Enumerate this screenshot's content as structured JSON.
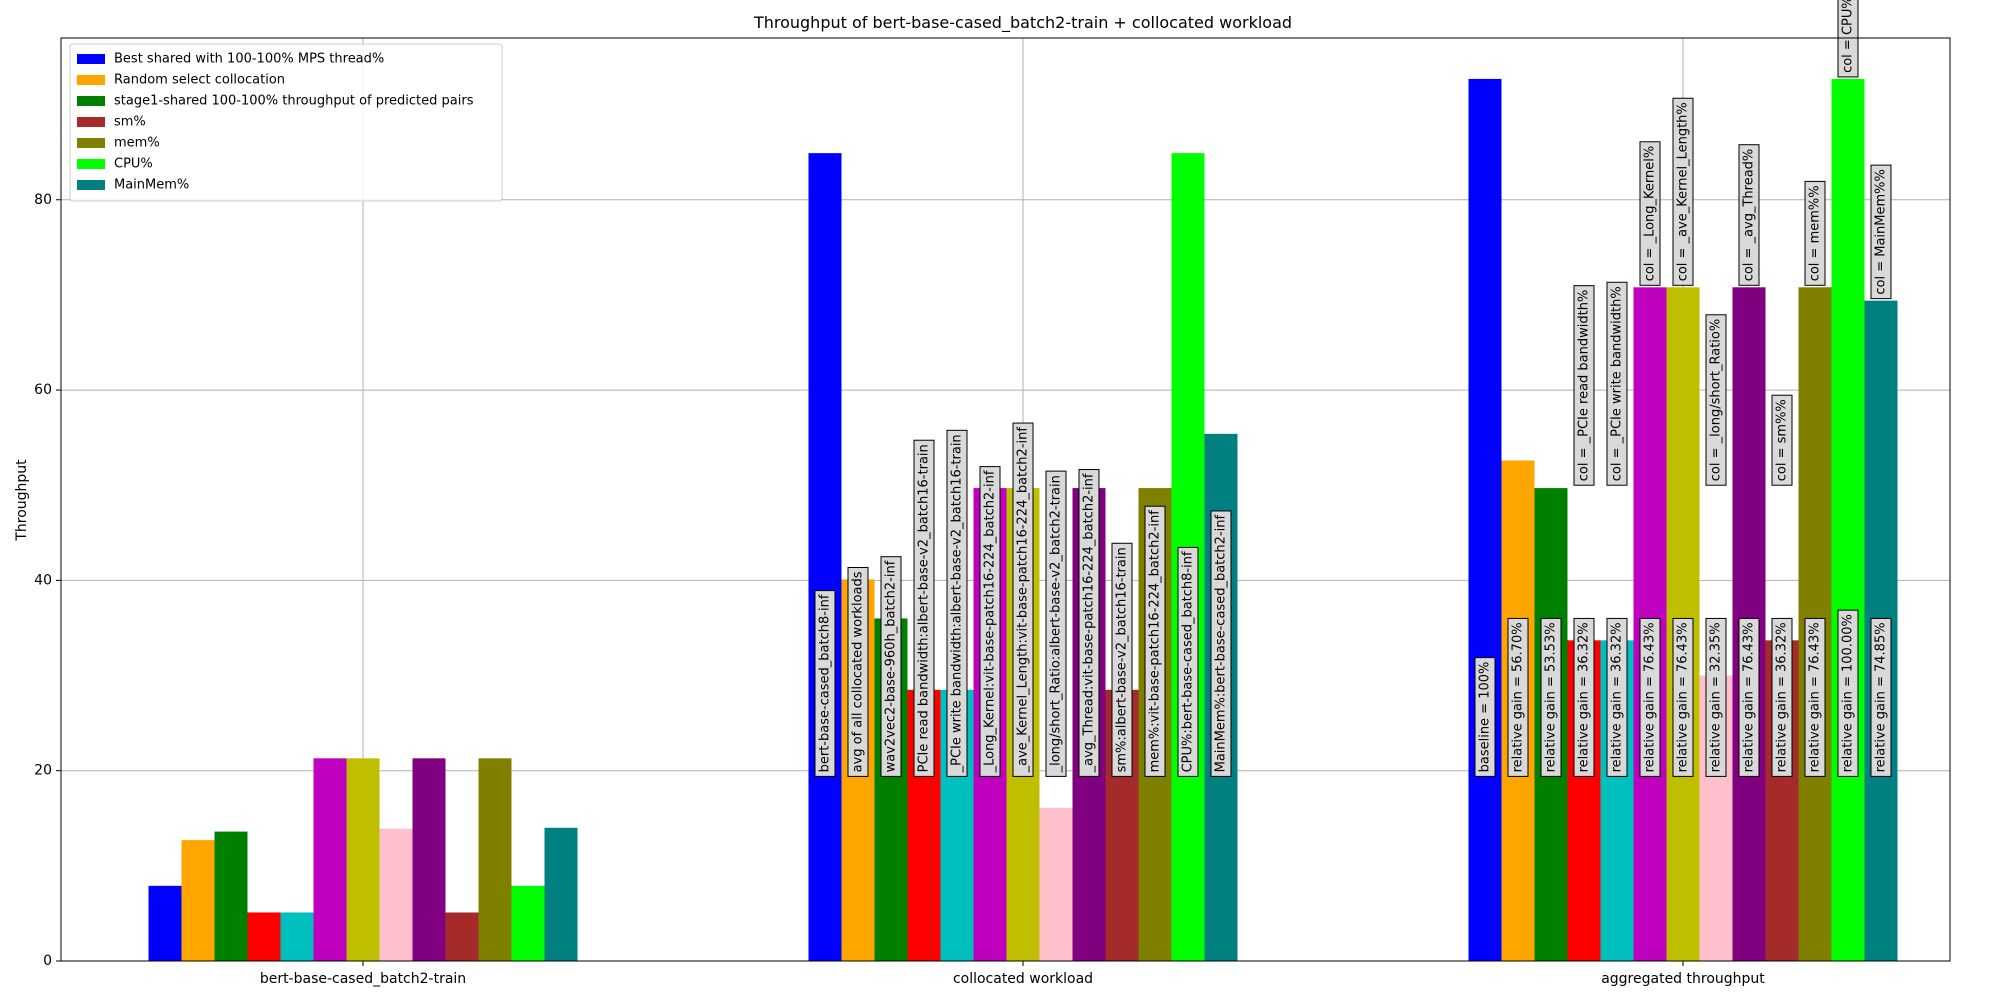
{
  "chart_data": {
    "type": "bar",
    "title": "Throughput of bert-base-cased_batch2-train + collocated workload",
    "xlabel": "",
    "ylabel": "Throughput",
    "ylim": [
      0,
      97
    ],
    "yticks": [
      0,
      20,
      40,
      60,
      80
    ],
    "grid": true,
    "legend_position": "upper-left",
    "categories": [
      "bert-base-cased_batch2-train",
      "collocated workload",
      "aggregated throughput"
    ],
    "bar_colors": [
      "#0000ff",
      "#ffa500",
      "#008000",
      "#ff0000",
      "#00bfbf",
      "#bf00bf",
      "#bfbf00",
      "#ffc0cb",
      "#800080",
      "#a52a2a",
      "#808000",
      "#00ff00",
      "#008080"
    ],
    "legend": [
      {
        "label": "Best shared with 100-100% MPS thread%",
        "color": "#0000ff"
      },
      {
        "label": "Random select collocation",
        "color": "#ffa500"
      },
      {
        "label": "stage1-shared 100-100% throughput of predicted pairs",
        "color": "#008000"
      },
      {
        "label": "sm%",
        "color": "#a52a2a"
      },
      {
        "label": "mem%",
        "color": "#808000"
      },
      {
        "label": "CPU%",
        "color": "#00ff00"
      },
      {
        "label": "MainMem%",
        "color": "#008080"
      }
    ],
    "groups": [
      [
        7.9,
        12.7,
        13.6,
        5.1,
        5.1,
        21.3,
        21.3,
        13.9,
        21.3,
        5.1,
        21.3,
        7.9,
        14.0
      ],
      [
        84.9,
        40.1,
        36.0,
        28.5,
        28.5,
        49.7,
        49.7,
        16.1,
        49.7,
        28.5,
        49.7,
        84.9,
        55.4
      ],
      [
        92.7,
        52.6,
        49.7,
        33.7,
        33.7,
        70.8,
        70.8,
        30.0,
        70.8,
        33.7,
        70.8,
        92.7,
        69.4
      ]
    ],
    "annotations": [
      {
        "group": 1,
        "texts": [
          "bert-base-cased_batch8-inf",
          "avg of all collocated workloads",
          "wav2vec2-base-960h_batch2-inf",
          "PCIe read bandwidth:albert-base-v2_batch16-train",
          "_PCIe write bandwidth:albert-base-v2_batch16-train",
          "_Long_Kernel:vit-base-patch16-224_batch2-inf",
          "_ave_Kernel_Length:vit-base-patch16-224_batch2-inf",
          "_long/short_Ratio:albert-base-v2_batch2-train",
          "_avg_Thread:vit-base-patch16-224_batch2-inf",
          "sm%:albert-base-v2_batch16-train",
          "mem%:vit-base-patch16-224_batch2-inf",
          "CPU%:bert-base-cased_batch8-inf",
          "MainMem%:bert-base-cased_batch2-inf"
        ]
      },
      {
        "group": 2,
        "texts": [
          "baseline = 100%",
          "relative gain = 56.70%",
          "relative gain = 53.53%",
          "relative gain = 36.32%",
          "relative gain = 36.32%",
          "relative gain = 76.43%",
          "relative gain = 76.43%",
          "relative gain = 32.35%",
          "relative gain = 76.43%",
          "relative gain = 36.32%",
          "relative gain = 76.43%",
          "relative gain = 100.00%",
          "relative gain = 74.85%"
        ]
      },
      {
        "group": 2,
        "top": true,
        "texts": [
          "",
          "",
          "",
          "col = _PCIe read bandwidth%",
          "col = _PCIe write bandwidth%",
          "col = _Long_Kernel%",
          "col = _ave_Kernel_Length%",
          "col = _long/short_Ratio%",
          "col = _avg_Thread%",
          "col = sm%%",
          "col = mem%%",
          "col = CPU%%",
          "col = MainMem%%"
        ]
      }
    ]
  }
}
